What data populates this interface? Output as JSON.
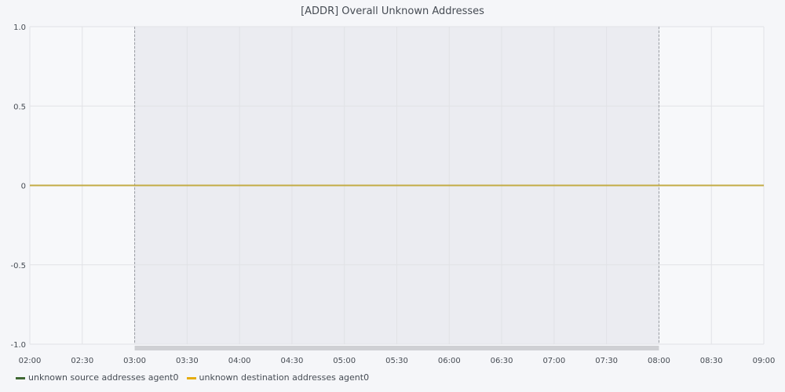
{
  "chart_data": {
    "type": "line",
    "title": "[ADDR] Overall Unknown Addresses",
    "x_ticks": [
      "02:00",
      "02:30",
      "03:00",
      "03:30",
      "04:00",
      "04:30",
      "05:00",
      "05:30",
      "06:00",
      "06:30",
      "07:00",
      "07:30",
      "08:00",
      "08:30",
      "09:00"
    ],
    "xlim": [
      "02:00",
      "09:00"
    ],
    "y_ticks": [
      "1.0",
      "0.5",
      "0",
      "-0.5",
      "-1.0"
    ],
    "ylim": [
      -1.0,
      1.0
    ],
    "grid": true,
    "highlight_range": [
      "03:00",
      "08:00"
    ],
    "series": [
      {
        "name": "unknown source addresses agent0",
        "color": "#3f6833",
        "x": [
          "02:00",
          "09:00"
        ],
        "values": [
          0,
          0
        ]
      },
      {
        "name": "unknown destination addresses agent0",
        "color": "#e5ac0e",
        "x": [
          "02:00",
          "09:00"
        ],
        "values": [
          0,
          0
        ]
      }
    ],
    "legend_position": "bottom-left"
  }
}
